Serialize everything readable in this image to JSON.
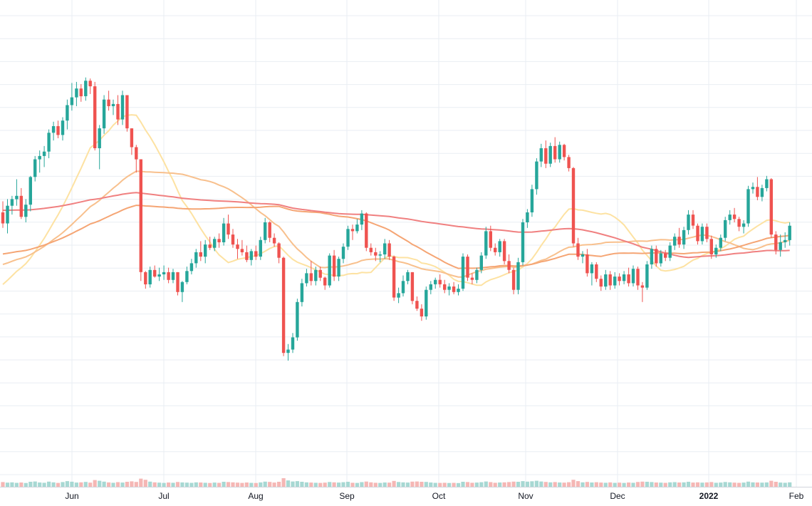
{
  "chart_data": {
    "type": "candlestick",
    "x_tick_labels": [
      "Jun",
      "Jul",
      "Aug",
      "Sep",
      "Oct",
      "Nov",
      "Dec",
      "2022",
      "Feb"
    ],
    "grid": true,
    "colors": {
      "up": "#26a69a",
      "down": "#ef5350",
      "volume_up": "#a7d8d3",
      "volume_down": "#f5b7b5",
      "grid": "#e9eef3",
      "ma_fast": "#fde2a2",
      "ma_mid": "#f8c08d",
      "ma_slow": "#f5a574",
      "ma_long": "#f08080"
    },
    "candles": [
      [
        34.8,
        35.8,
        33.4,
        33.8
      ],
      [
        33.8,
        36.0,
        32.9,
        35.4
      ],
      [
        35.4,
        36.3,
        34.6,
        36.0
      ],
      [
        36.0,
        37.8,
        35.4,
        36.3
      ],
      [
        36.3,
        37.0,
        34.2,
        34.4
      ],
      [
        34.4,
        36.0,
        33.9,
        35.5
      ],
      [
        35.5,
        38.1,
        34.9,
        38.0
      ],
      [
        38.0,
        39.9,
        37.6,
        39.6
      ],
      [
        39.6,
        40.4,
        38.4,
        39.9
      ],
      [
        39.9,
        40.8,
        38.9,
        40.3
      ],
      [
        40.3,
        42.3,
        39.7,
        42.0
      ],
      [
        42.0,
        43.0,
        41.3,
        42.6
      ],
      [
        42.6,
        43.1,
        41.5,
        41.8
      ],
      [
        41.8,
        43.4,
        41.3,
        43.1
      ],
      [
        43.1,
        45.0,
        42.3,
        44.5
      ],
      [
        44.5,
        46.5,
        44.0,
        45.2
      ],
      [
        45.2,
        46.6,
        44.4,
        46.0
      ],
      [
        46.0,
        46.4,
        44.8,
        45.3
      ],
      [
        45.3,
        47.0,
        44.9,
        46.7
      ],
      [
        46.7,
        46.9,
        45.5,
        46.2
      ],
      [
        46.2,
        46.6,
        40.4,
        40.6
      ],
      [
        40.6,
        42.7,
        38.7,
        42.4
      ],
      [
        42.4,
        45.4,
        41.9,
        45.0
      ],
      [
        45.0,
        45.8,
        44.0,
        44.4
      ],
      [
        44.4,
        45.0,
        43.6,
        44.6
      ],
      [
        44.6,
        45.4,
        42.7,
        43.2
      ],
      [
        43.2,
        45.8,
        42.7,
        45.4
      ],
      [
        45.4,
        45.4,
        42.1,
        42.4
      ],
      [
        42.4,
        42.4,
        40.0,
        40.7
      ],
      [
        40.7,
        40.9,
        38.4,
        39.6
      ],
      [
        39.6,
        39.6,
        28.6,
        29.4
      ],
      [
        29.4,
        29.5,
        27.9,
        28.3
      ],
      [
        28.3,
        29.9,
        28.0,
        29.6
      ],
      [
        29.6,
        30.0,
        28.9,
        29.0
      ],
      [
        29.0,
        29.8,
        28.6,
        29.2
      ],
      [
        29.2,
        30.0,
        28.7,
        29.4
      ],
      [
        29.4,
        29.8,
        28.4,
        28.7
      ],
      [
        28.7,
        29.7,
        28.4,
        29.4
      ],
      [
        29.4,
        29.4,
        27.3,
        27.6
      ],
      [
        27.6,
        28.6,
        26.7,
        28.5
      ],
      [
        28.5,
        29.9,
        28.3,
        29.5
      ],
      [
        29.5,
        30.6,
        29.2,
        30.2
      ],
      [
        30.2,
        31.5,
        29.8,
        31.2
      ],
      [
        31.2,
        32.2,
        30.4,
        30.8
      ],
      [
        30.8,
        32.3,
        30.2,
        31.9
      ],
      [
        31.9,
        32.6,
        31.4,
        31.6
      ],
      [
        31.6,
        32.6,
        31.3,
        32.4
      ],
      [
        32.4,
        32.9,
        31.6,
        32.1
      ],
      [
        32.1,
        34.3,
        31.8,
        33.8
      ],
      [
        33.8,
        34.6,
        32.4,
        32.8
      ],
      [
        32.8,
        33.3,
        31.6,
        31.9
      ],
      [
        31.9,
        32.4,
        30.6,
        31.5
      ],
      [
        31.5,
        32.3,
        30.9,
        31.2
      ],
      [
        31.2,
        31.8,
        30.3,
        30.5
      ],
      [
        30.5,
        31.5,
        30.0,
        31.3
      ],
      [
        31.3,
        31.8,
        30.5,
        30.8
      ],
      [
        30.8,
        32.6,
        30.5,
        32.3
      ],
      [
        32.3,
        34.3,
        32.0,
        33.9
      ],
      [
        33.9,
        34.0,
        32.1,
        32.5
      ],
      [
        32.5,
        32.9,
        31.7,
        32.0
      ],
      [
        32.0,
        32.1,
        30.2,
        30.7
      ],
      [
        30.7,
        30.8,
        21.8,
        22.1
      ],
      [
        22.1,
        22.9,
        21.4,
        22.4
      ],
      [
        22.4,
        23.9,
        22.1,
        23.5
      ],
      [
        23.5,
        27.0,
        23.2,
        26.7
      ],
      [
        26.7,
        28.8,
        26.3,
        28.4
      ],
      [
        28.4,
        29.7,
        28.1,
        29.3
      ],
      [
        29.3,
        30.4,
        28.2,
        28.6
      ],
      [
        28.6,
        29.9,
        28.2,
        29.6
      ],
      [
        29.6,
        29.9,
        28.6,
        28.9
      ],
      [
        28.9,
        29.0,
        27.8,
        28.2
      ],
      [
        28.2,
        31.1,
        28.0,
        30.9
      ],
      [
        30.9,
        31.4,
        28.6,
        29.0
      ],
      [
        29.0,
        30.8,
        28.6,
        30.6
      ],
      [
        30.6,
        32.0,
        30.2,
        31.7
      ],
      [
        31.7,
        33.6,
        31.4,
        33.3
      ],
      [
        33.3,
        33.7,
        32.3,
        33.1
      ],
      [
        33.1,
        34.2,
        32.9,
        33.7
      ],
      [
        33.7,
        35.0,
        33.2,
        34.7
      ],
      [
        34.7,
        34.8,
        31.3,
        31.6
      ],
      [
        31.6,
        32.0,
        30.9,
        31.2
      ],
      [
        31.2,
        31.6,
        30.4,
        30.9
      ],
      [
        30.9,
        31.3,
        30.3,
        31.0
      ],
      [
        31.0,
        32.4,
        30.6,
        32.0
      ],
      [
        32.0,
        32.3,
        30.5,
        30.8
      ],
      [
        30.8,
        30.9,
        26.8,
        27.1
      ],
      [
        27.1,
        28.0,
        26.6,
        27.5
      ],
      [
        27.5,
        29.1,
        27.2,
        28.6
      ],
      [
        28.6,
        29.6,
        28.3,
        29.4
      ],
      [
        29.4,
        29.4,
        26.5,
        26.8
      ],
      [
        26.8,
        27.2,
        25.9,
        26.1
      ],
      [
        26.1,
        26.5,
        25.0,
        25.4
      ],
      [
        25.4,
        28.1,
        25.1,
        27.8
      ],
      [
        27.8,
        28.6,
        27.4,
        28.3
      ],
      [
        28.3,
        28.9,
        27.9,
        28.7
      ],
      [
        28.7,
        29.2,
        28.0,
        28.3
      ],
      [
        28.3,
        28.7,
        27.5,
        27.8
      ],
      [
        27.8,
        28.4,
        27.3,
        28.1
      ],
      [
        28.1,
        28.5,
        27.4,
        27.6
      ],
      [
        27.6,
        28.3,
        27.3,
        27.9
      ],
      [
        27.9,
        31.1,
        27.7,
        30.8
      ],
      [
        30.8,
        31.0,
        28.6,
        28.9
      ],
      [
        28.9,
        29.3,
        28.3,
        28.7
      ],
      [
        28.7,
        29.8,
        28.4,
        29.6
      ],
      [
        29.6,
        31.2,
        29.3,
        30.9
      ],
      [
        30.9,
        33.5,
        30.6,
        33.1
      ],
      [
        33.1,
        33.6,
        31.3,
        31.6
      ],
      [
        31.6,
        32.0,
        30.9,
        31.2
      ],
      [
        31.2,
        32.4,
        30.8,
        32.2
      ],
      [
        32.2,
        32.4,
        30.1,
        30.4
      ],
      [
        30.4,
        31.0,
        29.3,
        29.6
      ],
      [
        29.6,
        29.8,
        27.4,
        27.8
      ],
      [
        27.8,
        30.7,
        27.4,
        30.3
      ],
      [
        30.3,
        34.2,
        30.0,
        33.9
      ],
      [
        33.9,
        35.1,
        33.4,
        34.8
      ],
      [
        34.8,
        37.3,
        34.4,
        36.9
      ],
      [
        36.9,
        39.7,
        36.4,
        39.4
      ],
      [
        39.4,
        41.0,
        38.9,
        40.6
      ],
      [
        40.6,
        41.3,
        38.8,
        39.2
      ],
      [
        39.2,
        41.1,
        38.9,
        40.8
      ],
      [
        40.8,
        41.6,
        39.3,
        39.6
      ],
      [
        39.6,
        41.2,
        39.3,
        40.9
      ],
      [
        40.9,
        41.0,
        39.5,
        39.8
      ],
      [
        39.8,
        40.0,
        38.5,
        38.8
      ],
      [
        38.8,
        38.9,
        31.7,
        32.0
      ],
      [
        32.0,
        32.5,
        30.5,
        30.8
      ],
      [
        30.8,
        31.3,
        30.2,
        31.0
      ],
      [
        31.0,
        31.5,
        29.0,
        29.3
      ],
      [
        29.3,
        30.3,
        28.2,
        30.1
      ],
      [
        30.1,
        30.3,
        28.5,
        28.8
      ],
      [
        28.8,
        29.1,
        27.7,
        28.1
      ],
      [
        28.1,
        29.6,
        27.8,
        29.2
      ],
      [
        29.2,
        29.5,
        27.8,
        28.2
      ],
      [
        28.2,
        29.4,
        27.9,
        29.0
      ],
      [
        29.0,
        29.3,
        28.2,
        28.6
      ],
      [
        28.6,
        29.5,
        28.3,
        29.2
      ],
      [
        29.2,
        29.8,
        28.1,
        28.4
      ],
      [
        28.4,
        30.0,
        28.1,
        29.7
      ],
      [
        29.7,
        29.9,
        27.8,
        28.2
      ],
      [
        28.2,
        28.5,
        26.7,
        28.0
      ],
      [
        28.0,
        30.4,
        27.8,
        30.1
      ],
      [
        30.1,
        31.8,
        29.7,
        31.5
      ],
      [
        31.5,
        31.8,
        29.9,
        30.2
      ],
      [
        30.2,
        31.4,
        29.9,
        31.1
      ],
      [
        31.1,
        31.4,
        30.4,
        30.7
      ],
      [
        30.7,
        32.1,
        30.4,
        31.8
      ],
      [
        31.8,
        32.9,
        31.4,
        32.6
      ],
      [
        32.6,
        33.4,
        31.6,
        31.9
      ],
      [
        31.9,
        33.5,
        31.5,
        33.2
      ],
      [
        33.2,
        35.0,
        32.8,
        34.6
      ],
      [
        34.6,
        35.0,
        33.3,
        33.6
      ],
      [
        33.6,
        33.8,
        31.9,
        32.2
      ],
      [
        32.2,
        33.8,
        31.9,
        33.5
      ],
      [
        33.5,
        33.8,
        32.1,
        32.4
      ],
      [
        32.4,
        32.7,
        30.6,
        31.0
      ],
      [
        31.0,
        31.9,
        30.7,
        31.6
      ],
      [
        31.6,
        32.8,
        31.3,
        32.5
      ],
      [
        32.5,
        34.4,
        32.2,
        34.1
      ],
      [
        34.1,
        35.0,
        33.7,
        34.6
      ],
      [
        34.6,
        35.2,
        33.9,
        34.2
      ],
      [
        34.2,
        34.4,
        33.1,
        33.5
      ],
      [
        33.5,
        34.1,
        32.9,
        33.8
      ],
      [
        33.8,
        37.2,
        33.5,
        36.9
      ],
      [
        36.9,
        37.5,
        36.5,
        37.1
      ],
      [
        37.1,
        38.0,
        35.9,
        36.2
      ],
      [
        36.2,
        37.3,
        35.8,
        37.0
      ],
      [
        37.0,
        38.1,
        36.7,
        37.8
      ],
      [
        37.8,
        37.9,
        32.5,
        32.8
      ],
      [
        32.8,
        33.1,
        31.0,
        31.4
      ],
      [
        31.4,
        32.8,
        30.8,
        32.1
      ],
      [
        32.1,
        33.0,
        31.6,
        32.3
      ],
      [
        32.3,
        33.9,
        31.8,
        33.6
      ]
    ],
    "volumes": [
      0.55,
      0.48,
      0.52,
      0.46,
      0.5,
      0.44,
      0.58,
      0.62,
      0.5,
      0.47,
      0.6,
      0.52,
      0.45,
      0.55,
      0.66,
      0.59,
      0.49,
      0.52,
      0.57,
      0.48,
      0.78,
      0.7,
      0.6,
      0.51,
      0.47,
      0.54,
      0.49,
      0.58,
      0.63,
      0.57,
      0.95,
      0.82,
      0.6,
      0.52,
      0.48,
      0.45,
      0.5,
      0.47,
      0.56,
      0.51,
      0.48,
      0.46,
      0.52,
      0.5,
      0.47,
      0.44,
      0.49,
      0.46,
      0.58,
      0.55,
      0.52,
      0.48,
      0.45,
      0.5,
      0.46,
      0.44,
      0.51,
      0.6,
      0.57,
      0.49,
      0.58,
      1.0,
      0.74,
      0.62,
      0.66,
      0.58,
      0.52,
      0.49,
      0.47,
      0.45,
      0.48,
      0.56,
      0.52,
      0.49,
      0.53,
      0.58,
      0.47,
      0.45,
      0.54,
      0.61,
      0.52,
      0.47,
      0.45,
      0.5,
      0.48,
      0.68,
      0.56,
      0.52,
      0.49,
      0.6,
      0.62,
      0.58,
      0.57,
      0.5,
      0.46,
      0.45,
      0.47,
      0.44,
      0.46,
      0.43,
      0.58,
      0.55,
      0.47,
      0.49,
      0.53,
      0.62,
      0.54,
      0.47,
      0.5,
      0.52,
      0.55,
      0.6,
      0.58,
      0.66,
      0.6,
      0.64,
      0.7,
      0.62,
      0.57,
      0.52,
      0.55,
      0.5,
      0.48,
      0.53,
      0.82,
      0.66,
      0.52,
      0.57,
      0.5,
      0.53,
      0.49,
      0.47,
      0.51,
      0.46,
      0.48,
      0.45,
      0.5,
      0.47,
      0.56,
      0.6,
      0.58,
      0.55,
      0.5,
      0.48,
      0.46,
      0.52,
      0.54,
      0.5,
      0.52,
      0.58,
      0.49,
      0.52,
      0.48,
      0.51,
      0.55,
      0.47,
      0.49,
      0.56,
      0.52,
      0.48,
      0.46,
      0.49,
      0.6,
      0.52,
      0.5,
      0.48,
      0.51,
      0.7,
      0.58,
      0.49,
      0.47,
      0.52
    ]
  }
}
